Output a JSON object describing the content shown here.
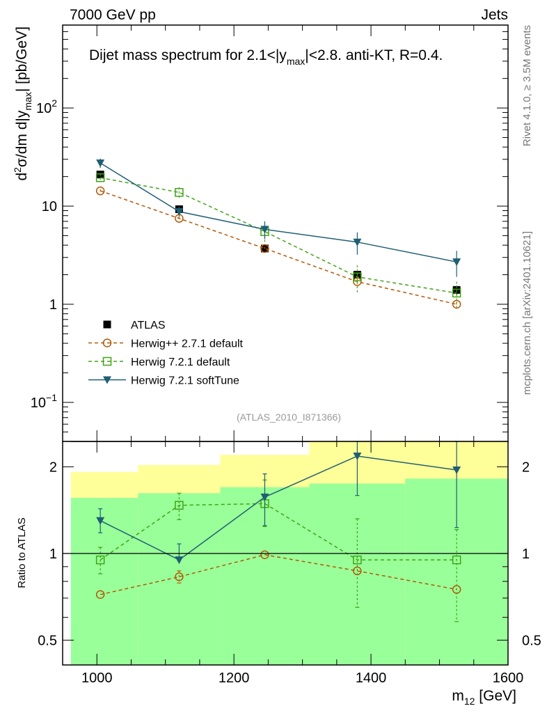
{
  "header": {
    "left": "7000 GeV pp",
    "right": "Jets"
  },
  "side_labels": {
    "rivet": "Rivet 4.1.0, ≥ 3.5M events",
    "mcplots": "mcplots.cern.ch [arXiv:2401.10621]"
  },
  "watermark": "(ATLAS_2010_I871366)",
  "chart_data": [
    {
      "id": "main",
      "type": "line",
      "yscale": "log",
      "title_parts": [
        "Dijet mass spectrum for 2.1<|y",
        "max",
        "|<2.8.  anti-KT, R=0.4."
      ],
      "ylabel_parts": [
        "d",
        "2",
        "σ/dm d|y",
        "max",
        "| [pb/GeV]"
      ],
      "xlim": [
        950,
        1600
      ],
      "ylim": [
        0.04,
        700
      ],
      "yticks": [
        {
          "value": 0.1,
          "base": "10",
          "exp": "−1"
        },
        {
          "value": 1,
          "base": "1",
          "exp": ""
        },
        {
          "value": 10,
          "base": "10",
          "exp": ""
        },
        {
          "value": 100,
          "base": "10",
          "exp": "2"
        }
      ],
      "data_series": {
        "name": "ATLAS",
        "x": [
          1005,
          1120,
          1245,
          1380,
          1525
        ],
        "y": [
          21,
          9.3,
          3.7,
          2.0,
          1.4
        ],
        "err": [
          1.5,
          0.7,
          0.3,
          0.2,
          0.15
        ],
        "xerr": [
          55,
          60,
          65,
          70,
          75
        ],
        "color": "#000000"
      },
      "series": [
        {
          "name": "Herwig++ 2.7.1 default",
          "marker": "circle",
          "dashed": true,
          "color": "#b35806",
          "x": [
            1005,
            1120,
            1245,
            1380,
            1525
          ],
          "y": [
            14.3,
            7.5,
            3.7,
            1.7,
            1.0
          ],
          "err": [
            0.5,
            0.3,
            0.15,
            0.08,
            0.06
          ]
        },
        {
          "name": "Herwig 7.2.1 default",
          "marker": "square",
          "dashed": true,
          "color": "#41a317",
          "x": [
            1005,
            1120,
            1245,
            1380,
            1525
          ],
          "y": [
            19.5,
            13.8,
            5.5,
            1.9,
            1.3
          ],
          "err": [
            2.0,
            1.8,
            1.2,
            0.6,
            0.4
          ]
        },
        {
          "name": "Herwig 7.2.1 softTune",
          "marker": "triangle",
          "dashed": false,
          "color": "#1f5e73",
          "x": [
            1005,
            1120,
            1245,
            1380,
            1525
          ],
          "y": [
            27.5,
            8.8,
            5.8,
            4.3,
            2.7
          ],
          "err": [
            3.0,
            1.0,
            1.2,
            1.1,
            0.8
          ]
        }
      ]
    },
    {
      "id": "ratio",
      "type": "line",
      "yscale": "log",
      "ylabel": "Ratio to ATLAS",
      "xlabel_parts": [
        "m",
        "12",
        " [GeV]"
      ],
      "xlim": [
        950,
        1600
      ],
      "ylim": [
        0.41,
        2.45
      ],
      "xticks": [
        1000,
        1200,
        1400,
        1600
      ],
      "yticks": [
        0.5,
        1,
        2
      ],
      "ytick_labels": [
        "0.5",
        "1",
        "2"
      ],
      "bands": {
        "edges": [
          950,
          1060,
          1180,
          1310,
          1450,
          1600
        ],
        "yellow_lo": [
          0.52,
          0.44,
          0.44,
          0.35,
          0.35
        ],
        "yellow_hi": [
          1.92,
          2.03,
          2.2,
          2.5,
          2.5
        ],
        "green_lo": [
          0.35,
          0.35,
          0.35,
          0.35,
          0.35
        ],
        "green_hi": [
          1.56,
          1.62,
          1.7,
          1.75,
          1.82
        ],
        "yellow_color": "#ffff99",
        "green_color": "#99ff99"
      },
      "series": [
        {
          "name": "Herwig++ 2.7.1 default",
          "marker": "circle",
          "dashed": true,
          "color": "#b35806",
          "x": [
            1005,
            1120,
            1245,
            1380,
            1525
          ],
          "y": [
            0.72,
            0.83,
            0.99,
            0.87,
            0.75
          ],
          "err_lo": [
            0.0,
            0.04,
            0.0,
            0.0,
            0.0
          ],
          "err_hi": [
            0.0,
            0.04,
            0.0,
            0.0,
            0.0
          ]
        },
        {
          "name": "Herwig 7.2.1 default",
          "marker": "square",
          "dashed": true,
          "color": "#41a317",
          "x": [
            1005,
            1120,
            1245,
            1380,
            1525
          ],
          "y": [
            0.95,
            1.47,
            1.49,
            0.95,
            0.95
          ],
          "err_lo": [
            0.1,
            0.16,
            0.25,
            0.3,
            0.37
          ],
          "err_hi": [
            0.1,
            0.15,
            0.31,
            0.37,
            0.26
          ]
        },
        {
          "name": "Herwig 7.2.1 softTune",
          "marker": "triangle",
          "dashed": false,
          "color": "#1f5e73",
          "x": [
            1005,
            1120,
            1245,
            1380,
            1525
          ],
          "y": [
            1.3,
            0.95,
            1.57,
            2.18,
            1.95
          ],
          "err_lo": [
            0.12,
            0.0,
            0.32,
            0.59,
            0.72
          ],
          "err_hi": [
            0.13,
            0.13,
            0.32,
            0.41,
            0.55
          ]
        }
      ]
    }
  ]
}
